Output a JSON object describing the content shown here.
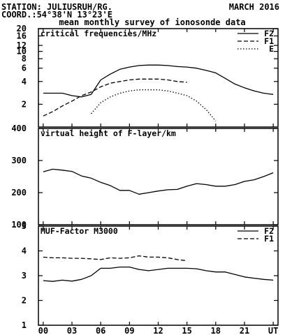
{
  "header": {
    "station": "STATION: JULIUSRUH/RG.",
    "coord": "COORD.:54°38'N 13°23'E",
    "date": "MARCH 2016",
    "subtitle": "mean monthly survey of ionosonde data"
  },
  "x_axis": {
    "ticks": [
      {
        "t": 0,
        "label": "00"
      },
      {
        "t": 3,
        "label": "03"
      },
      {
        "t": 6,
        "label": "06"
      },
      {
        "t": 9,
        "label": "09"
      },
      {
        "t": 12,
        "label": "12"
      },
      {
        "t": 15,
        "label": "15"
      },
      {
        "t": 18,
        "label": "18"
      },
      {
        "t": 21,
        "label": "21"
      },
      {
        "t": 24,
        "label": "UT"
      }
    ]
  },
  "colors": {
    "line": "#000000",
    "background": "#ffffff"
  },
  "chart_data": [
    {
      "type": "line",
      "title": "critical frequencies/MHz",
      "yscale": "log",
      "ylim": [
        1.0,
        20
      ],
      "xlim": [
        -0.5,
        24.5
      ],
      "yticks": [
        2,
        4,
        6,
        8,
        10,
        12,
        16,
        20
      ],
      "legend": "top-right",
      "series": [
        {
          "name": "F2",
          "style": "solid",
          "x": [
            0,
            1,
            2,
            3,
            4,
            5,
            6,
            7,
            8,
            9,
            10,
            11,
            12,
            13,
            14,
            15,
            16,
            17,
            18,
            19,
            20,
            21,
            22,
            23,
            24
          ],
          "y": [
            2.8,
            2.8,
            2.8,
            2.6,
            2.5,
            2.7,
            4.2,
            5.0,
            5.8,
            6.2,
            6.5,
            6.6,
            6.6,
            6.5,
            6.3,
            6.2,
            6.0,
            5.6,
            5.2,
            4.4,
            3.7,
            3.3,
            3.0,
            2.8,
            2.7
          ]
        },
        {
          "name": "F1",
          "style": "dashed",
          "x": [
            0,
            1,
            2,
            3,
            4,
            5,
            6,
            7,
            8,
            9,
            10,
            11,
            12,
            13,
            14,
            15
          ],
          "y": [
            1.4,
            1.6,
            1.9,
            2.2,
            2.6,
            2.9,
            3.4,
            3.8,
            4.0,
            4.2,
            4.3,
            4.3,
            4.3,
            4.2,
            4.0,
            3.9
          ]
        },
        {
          "name": "E",
          "style": "dotted",
          "x": [
            5,
            6,
            7,
            8,
            9,
            10,
            11,
            12,
            13,
            14,
            15,
            16,
            17,
            18
          ],
          "y": [
            1.5,
            2.1,
            2.5,
            2.8,
            3.0,
            3.1,
            3.1,
            3.1,
            3.0,
            2.8,
            2.6,
            2.2,
            1.7,
            1.2
          ]
        }
      ]
    },
    {
      "type": "line",
      "title": "virtual height of F-layer/km",
      "ylim": [
        100,
        400
      ],
      "xlim": [
        -0.5,
        24.5
      ],
      "yticks": [
        100,
        200,
        300,
        400
      ],
      "series": [
        {
          "style": "solid",
          "x": [
            0,
            1,
            2,
            3,
            4,
            5,
            6,
            7,
            8,
            9,
            10,
            11,
            12,
            13,
            14,
            15,
            16,
            17,
            18,
            19,
            20,
            21,
            22,
            23,
            24
          ],
          "y": [
            265,
            273,
            270,
            266,
            252,
            245,
            232,
            222,
            207,
            207,
            195,
            200,
            205,
            209,
            210,
            220,
            228,
            225,
            220,
            220,
            225,
            235,
            240,
            250,
            262
          ]
        }
      ]
    },
    {
      "type": "line",
      "title": "MUF-Factor M3000",
      "ylim": [
        1,
        5
      ],
      "xlim": [
        -0.5,
        24.5
      ],
      "yticks": [
        1,
        2,
        3,
        4,
        5
      ],
      "legend": "top-right",
      "series": [
        {
          "name": "F2",
          "style": "solid",
          "x": [
            0,
            1,
            2,
            3,
            4,
            5,
            6,
            7,
            8,
            9,
            10,
            11,
            12,
            13,
            14,
            15,
            16,
            17,
            18,
            19,
            20,
            21,
            22,
            23,
            24
          ],
          "y": [
            2.8,
            2.77,
            2.82,
            2.78,
            2.85,
            3.0,
            3.3,
            3.3,
            3.35,
            3.35,
            3.25,
            3.2,
            3.25,
            3.3,
            3.3,
            3.3,
            3.28,
            3.2,
            3.15,
            3.15,
            3.05,
            2.95,
            2.9,
            2.85,
            2.82
          ]
        },
        {
          "name": "F1",
          "style": "dashed",
          "x": [
            0,
            1,
            2,
            3,
            4,
            5,
            6,
            7,
            8,
            9,
            10,
            11,
            12,
            13,
            14,
            15
          ],
          "y": [
            3.75,
            3.72,
            3.72,
            3.7,
            3.7,
            3.68,
            3.65,
            3.72,
            3.7,
            3.72,
            3.8,
            3.75,
            3.75,
            3.72,
            3.65,
            3.6
          ]
        }
      ]
    }
  ]
}
